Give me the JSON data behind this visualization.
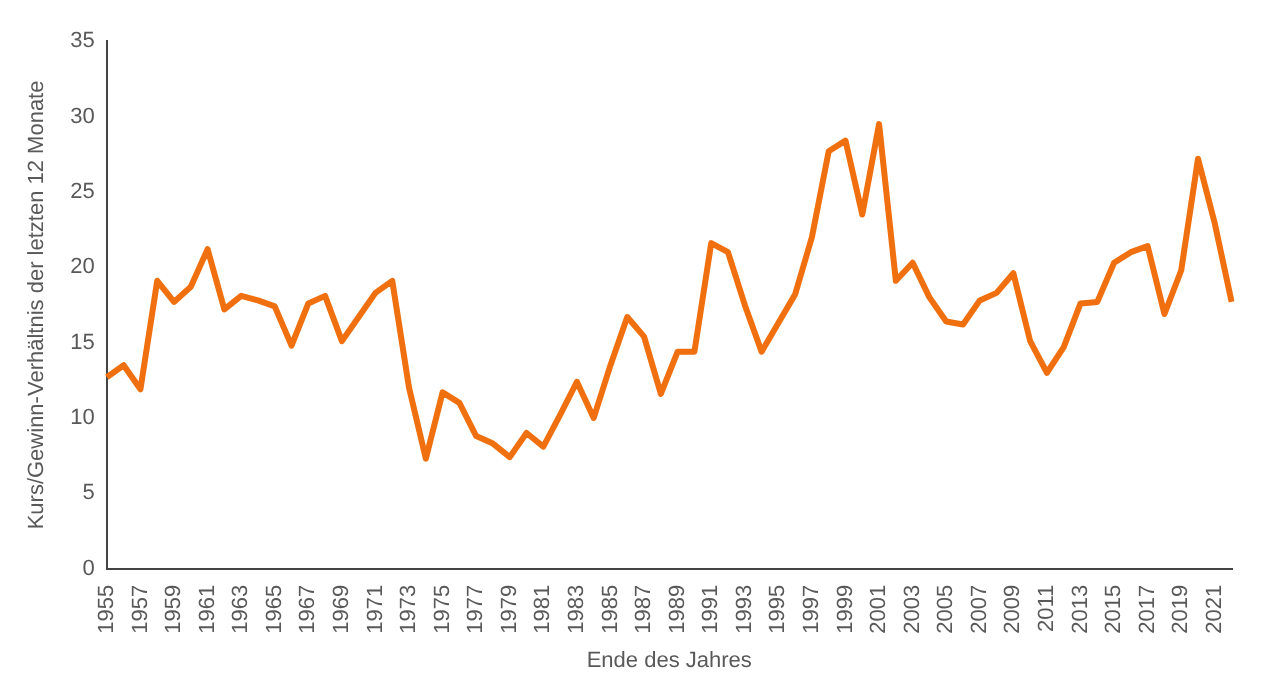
{
  "chart_data": {
    "type": "line",
    "xlabel": "Ende des Jahres",
    "ylabel": "Kurs/Gewinn-Verhältnis der letzten 12 Monate",
    "categories": [
      "1955",
      null,
      "1957",
      null,
      "1959",
      null,
      "1961",
      null,
      "1963",
      null,
      "1965",
      null,
      "1967",
      null,
      "1969",
      null,
      "1971",
      null,
      "1973",
      null,
      "1975",
      null,
      "1977",
      null,
      "1979",
      null,
      "1981",
      null,
      "1983",
      null,
      "1985",
      null,
      "1987",
      null,
      "1989",
      null,
      "1991",
      null,
      "1993",
      null,
      "1995",
      null,
      "1997",
      null,
      "1999",
      null,
      "2001",
      null,
      "2003",
      null,
      "2005",
      null,
      "2007",
      null,
      "2009",
      null,
      "2011",
      null,
      "2013",
      null,
      "2015",
      null,
      "2017",
      null,
      "2019",
      null,
      "2021",
      null
    ],
    "series": [
      {
        "color": "#f07010",
        "values": [
          12.7,
          13.5,
          11.9,
          19.1,
          17.7,
          18.7,
          21.2,
          17.2,
          18.1,
          17.8,
          17.4,
          14.8,
          17.6,
          18.1,
          15.1,
          16.7,
          18.3,
          19.1,
          12.0,
          7.3,
          11.7,
          11.0,
          8.8,
          8.3,
          7.4,
          9.0,
          8.1,
          10.2,
          12.4,
          10.0,
          13.5,
          16.7,
          15.4,
          11.6,
          14.4,
          14.4,
          21.6,
          21.0,
          17.5,
          14.4,
          16.3,
          18.2,
          22.0,
          27.7,
          28.4,
          23.5,
          29.5,
          19.1,
          20.3,
          18.0,
          16.4,
          16.2,
          17.8,
          18.3,
          19.6,
          15.1,
          13.0,
          14.7,
          17.6,
          17.7,
          20.3,
          21.0,
          21.4,
          16.9,
          19.8,
          27.2,
          22.9,
          17.7
        ]
      }
    ],
    "ylim": [
      0,
      35
    ],
    "yticks": [
      0,
      5,
      10,
      15,
      20,
      25,
      30,
      35
    ],
    "grid": false,
    "legend": false,
    "marker": "none",
    "line_style": "solid"
  }
}
